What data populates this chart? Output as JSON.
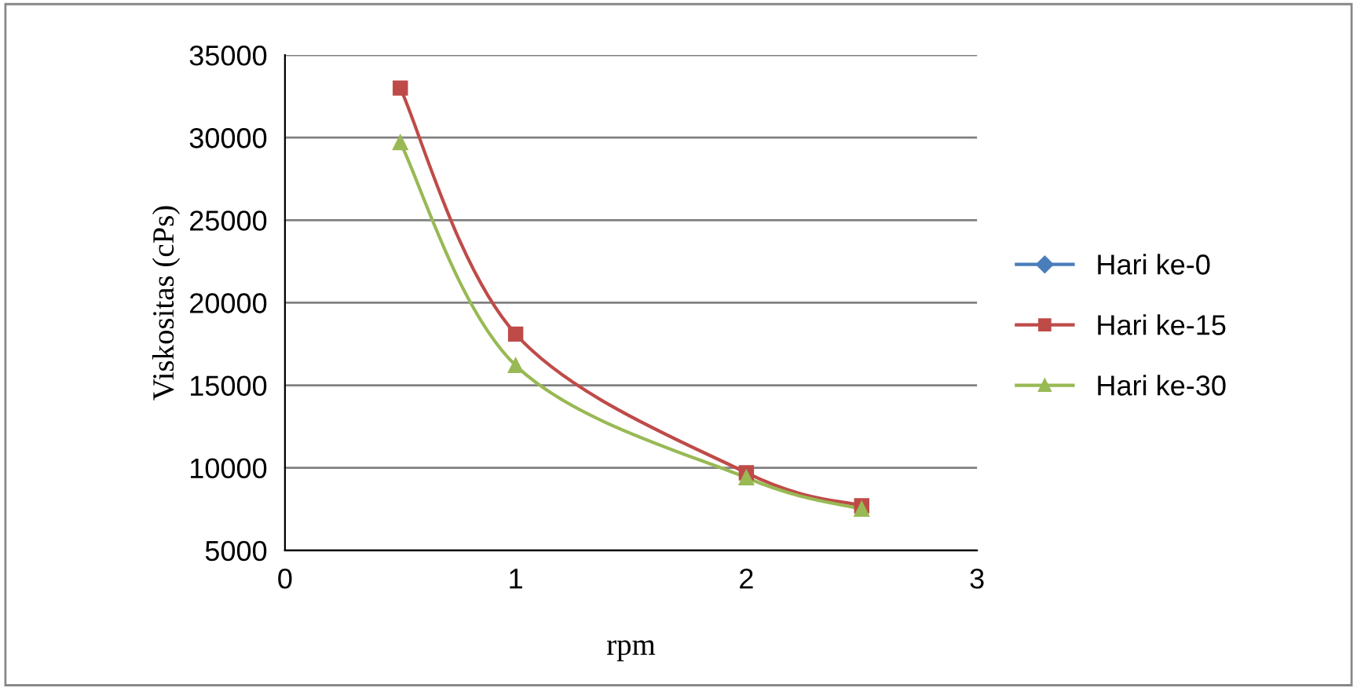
{
  "chart_data": {
    "type": "line",
    "xlabel": "rpm",
    "ylabel": "Viskositas (cPs)",
    "x": [
      0.5,
      1,
      2,
      2.5
    ],
    "series": [
      {
        "name": "Hari ke-0",
        "color": "#4a7ebb",
        "marker": "diamond",
        "values": [
          null,
          null,
          null,
          null
        ]
      },
      {
        "name": "Hari ke-15",
        "color": "#be4b48",
        "marker": "square",
        "values": [
          33000,
          18100,
          9700,
          7700
        ]
      },
      {
        "name": "Hari ke-30",
        "color": "#98b954",
        "marker": "triangle",
        "values": [
          29700,
          16200,
          9400,
          7500
        ]
      }
    ],
    "xlim": [
      0,
      3
    ],
    "xticks": [
      0,
      1,
      2,
      3
    ],
    "ylim": [
      5000,
      35000
    ],
    "yticks": [
      5000,
      10000,
      15000,
      20000,
      25000,
      30000,
      35000
    ],
    "grid": "y",
    "legend": "right"
  }
}
